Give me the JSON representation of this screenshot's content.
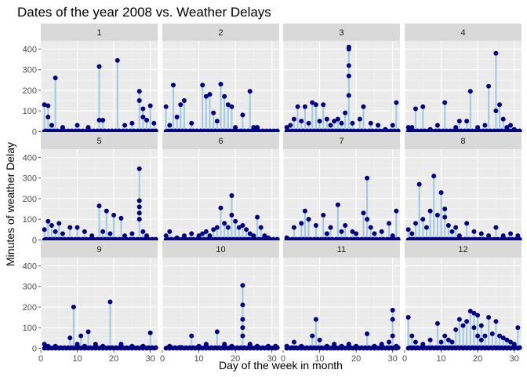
{
  "chart_data": {
    "type": "scatter",
    "title": "Dates of the year 2008 vs. Weather Delays",
    "xlabel": "Day of the week in month",
    "ylabel": "Minutes of weather Delay",
    "xlim": [
      0,
      32
    ],
    "ylim": [
      -10,
      440
    ],
    "x_ticks": [
      0,
      10,
      20,
      30
    ],
    "y_ticks": [
      0,
      100,
      200,
      300,
      400
    ],
    "grid": true,
    "facet_layout": "3 rows x 4 columns",
    "colors": {
      "point": "#000080",
      "segment": "#9ecae1",
      "panel_bg": "#ebebeb",
      "strip_bg": "#d9d9d9",
      "grid_major": "#ffffff"
    },
    "facets": [
      {
        "label": "1",
        "points": [
          [
            1,
            130
          ],
          [
            2,
            125
          ],
          [
            2,
            70
          ],
          [
            3,
            30
          ],
          [
            4,
            260
          ],
          [
            6,
            20
          ],
          [
            10,
            30
          ],
          [
            13,
            20
          ],
          [
            16,
            315
          ],
          [
            16,
            55
          ],
          [
            17,
            55
          ],
          [
            21,
            345
          ],
          [
            23,
            30
          ],
          [
            25,
            40
          ],
          [
            27,
            195
          ],
          [
            27,
            150
          ],
          [
            28,
            70
          ],
          [
            28,
            110
          ],
          [
            29,
            55
          ],
          [
            30,
            125
          ],
          [
            31,
            40
          ]
        ]
      },
      {
        "label": "2",
        "points": [
          [
            1,
            120
          ],
          [
            2,
            30
          ],
          [
            3,
            225
          ],
          [
            4,
            70
          ],
          [
            5,
            130
          ],
          [
            6,
            150
          ],
          [
            8,
            40
          ],
          [
            11,
            225
          ],
          [
            12,
            170
          ],
          [
            13,
            180
          ],
          [
            14,
            90
          ],
          [
            15,
            50
          ],
          [
            16,
            230
          ],
          [
            17,
            170
          ],
          [
            18,
            130
          ],
          [
            19,
            120
          ],
          [
            20,
            20
          ],
          [
            22,
            80
          ],
          [
            24,
            195
          ],
          [
            25,
            20
          ],
          [
            26,
            20
          ]
        ]
      },
      {
        "label": "3",
        "points": [
          [
            1,
            20
          ],
          [
            2,
            30
          ],
          [
            3,
            60
          ],
          [
            4,
            120
          ],
          [
            5,
            50
          ],
          [
            6,
            120
          ],
          [
            7,
            40
          ],
          [
            8,
            140
          ],
          [
            9,
            130
          ],
          [
            10,
            50
          ],
          [
            11,
            130
          ],
          [
            12,
            60
          ],
          [
            13,
            30
          ],
          [
            14,
            50
          ],
          [
            15,
            60
          ],
          [
            16,
            40
          ],
          [
            17,
            90
          ],
          [
            18,
            410
          ],
          [
            18,
            400
          ],
          [
            18,
            320
          ],
          [
            18,
            270
          ],
          [
            18,
            175
          ],
          [
            19,
            40
          ],
          [
            21,
            60
          ],
          [
            22,
            120
          ],
          [
            24,
            40
          ],
          [
            26,
            30
          ],
          [
            28,
            10
          ],
          [
            30,
            30
          ],
          [
            31,
            140
          ]
        ]
      },
      {
        "label": "4",
        "points": [
          [
            1,
            20
          ],
          [
            2,
            20
          ],
          [
            3,
            110
          ],
          [
            5,
            120
          ],
          [
            7,
            10
          ],
          [
            9,
            30
          ],
          [
            11,
            140
          ],
          [
            14,
            20
          ],
          [
            15,
            50
          ],
          [
            17,
            50
          ],
          [
            18,
            195
          ],
          [
            20,
            20
          ],
          [
            22,
            30
          ],
          [
            23,
            220
          ],
          [
            25,
            380
          ],
          [
            25,
            100
          ],
          [
            26,
            130
          ],
          [
            27,
            60
          ],
          [
            28,
            20
          ],
          [
            29,
            30
          ],
          [
            30,
            10
          ]
        ]
      },
      {
        "label": "5",
        "points": [
          [
            1,
            50
          ],
          [
            2,
            90
          ],
          [
            3,
            70
          ],
          [
            4,
            40
          ],
          [
            5,
            80
          ],
          [
            6,
            30
          ],
          [
            8,
            60
          ],
          [
            10,
            60
          ],
          [
            12,
            40
          ],
          [
            14,
            20
          ],
          [
            16,
            165
          ],
          [
            17,
            40
          ],
          [
            18,
            140
          ],
          [
            19,
            30
          ],
          [
            20,
            120
          ],
          [
            22,
            105
          ],
          [
            23,
            20
          ],
          [
            25,
            30
          ],
          [
            27,
            345
          ],
          [
            27,
            190
          ],
          [
            27,
            160
          ],
          [
            27,
            130
          ],
          [
            27,
            100
          ],
          [
            28,
            40
          ],
          [
            29,
            20
          ]
        ]
      },
      {
        "label": "6",
        "points": [
          [
            1,
            20
          ],
          [
            2,
            40
          ],
          [
            4,
            10
          ],
          [
            6,
            20
          ],
          [
            8,
            30
          ],
          [
            10,
            20
          ],
          [
            11,
            30
          ],
          [
            12,
            40
          ],
          [
            13,
            20
          ],
          [
            14,
            50
          ],
          [
            15,
            60
          ],
          [
            16,
            155
          ],
          [
            17,
            80
          ],
          [
            18,
            60
          ],
          [
            19,
            215
          ],
          [
            19,
            120
          ],
          [
            20,
            90
          ],
          [
            21,
            60
          ],
          [
            22,
            70
          ],
          [
            23,
            50
          ],
          [
            24,
            30
          ],
          [
            25,
            20
          ],
          [
            26,
            110
          ],
          [
            27,
            60
          ],
          [
            28,
            20
          ],
          [
            29,
            10
          ]
        ]
      },
      {
        "label": "7",
        "points": [
          [
            1,
            10
          ],
          [
            3,
            60
          ],
          [
            5,
            80
          ],
          [
            6,
            140
          ],
          [
            7,
            100
          ],
          [
            9,
            70
          ],
          [
            11,
            120
          ],
          [
            12,
            30
          ],
          [
            13,
            60
          ],
          [
            15,
            170
          ],
          [
            16,
            40
          ],
          [
            17,
            70
          ],
          [
            19,
            40
          ],
          [
            20,
            30
          ],
          [
            22,
            130
          ],
          [
            23,
            300
          ],
          [
            23,
            100
          ],
          [
            24,
            60
          ],
          [
            25,
            30
          ],
          [
            27,
            40
          ],
          [
            29,
            80
          ],
          [
            30,
            20
          ],
          [
            31,
            140
          ]
        ]
      },
      {
        "label": "8",
        "points": [
          [
            1,
            50
          ],
          [
            2,
            30
          ],
          [
            3,
            80
          ],
          [
            4,
            270
          ],
          [
            5,
            100
          ],
          [
            6,
            60
          ],
          [
            7,
            140
          ],
          [
            8,
            310
          ],
          [
            9,
            120
          ],
          [
            10,
            230
          ],
          [
            11,
            150
          ],
          [
            11,
            110
          ],
          [
            12,
            70
          ],
          [
            13,
            40
          ],
          [
            14,
            60
          ],
          [
            15,
            20
          ],
          [
            17,
            80
          ],
          [
            19,
            40
          ],
          [
            21,
            30
          ],
          [
            23,
            20
          ],
          [
            25,
            60
          ],
          [
            27,
            20
          ],
          [
            29,
            30
          ],
          [
            31,
            20
          ]
        ]
      },
      {
        "label": "9",
        "points": [
          [
            1,
            20
          ],
          [
            2,
            10
          ],
          [
            4,
            10
          ],
          [
            8,
            50
          ],
          [
            9,
            200
          ],
          [
            10,
            20
          ],
          [
            11,
            60
          ],
          [
            12,
            10
          ],
          [
            13,
            80
          ],
          [
            15,
            20
          ],
          [
            17,
            10
          ],
          [
            19,
            225
          ],
          [
            22,
            20
          ],
          [
            25,
            10
          ],
          [
            28,
            10
          ],
          [
            30,
            75
          ]
        ]
      },
      {
        "label": "10",
        "points": [
          [
            2,
            10
          ],
          [
            5,
            5
          ],
          [
            8,
            60
          ],
          [
            10,
            10
          ],
          [
            12,
            20
          ],
          [
            15,
            80
          ],
          [
            17,
            20
          ],
          [
            19,
            10
          ],
          [
            22,
            305
          ],
          [
            22,
            210
          ],
          [
            22,
            140
          ],
          [
            22,
            100
          ],
          [
            22,
            60
          ],
          [
            24,
            20
          ],
          [
            26,
            10
          ],
          [
            29,
            10
          ],
          [
            31,
            10
          ]
        ]
      },
      {
        "label": "11",
        "points": [
          [
            1,
            10
          ],
          [
            3,
            30
          ],
          [
            5,
            10
          ],
          [
            8,
            60
          ],
          [
            9,
            140
          ],
          [
            10,
            40
          ],
          [
            12,
            10
          ],
          [
            14,
            20
          ],
          [
            16,
            10
          ],
          [
            18,
            20
          ],
          [
            20,
            10
          ],
          [
            23,
            70
          ],
          [
            25,
            10
          ],
          [
            27,
            20
          ],
          [
            29,
            30
          ],
          [
            30,
            185
          ],
          [
            30,
            140
          ],
          [
            30,
            60
          ],
          [
            31,
            10
          ]
        ]
      },
      {
        "label": "12",
        "points": [
          [
            1,
            150
          ],
          [
            2,
            60
          ],
          [
            3,
            30
          ],
          [
            5,
            20
          ],
          [
            7,
            40
          ],
          [
            9,
            120
          ],
          [
            10,
            30
          ],
          [
            11,
            60
          ],
          [
            12,
            40
          ],
          [
            13,
            30
          ],
          [
            14,
            90
          ],
          [
            15,
            140
          ],
          [
            16,
            110
          ],
          [
            17,
            130
          ],
          [
            18,
            180
          ],
          [
            19,
            170
          ],
          [
            19,
            100
          ],
          [
            20,
            160
          ],
          [
            20,
            60
          ],
          [
            21,
            110
          ],
          [
            21,
            40
          ],
          [
            22,
            60
          ],
          [
            23,
            150
          ],
          [
            24,
            70
          ],
          [
            25,
            130
          ],
          [
            26,
            60
          ],
          [
            27,
            50
          ],
          [
            28,
            40
          ],
          [
            29,
            30
          ],
          [
            30,
            20
          ],
          [
            31,
            100
          ]
        ]
      }
    ]
  }
}
